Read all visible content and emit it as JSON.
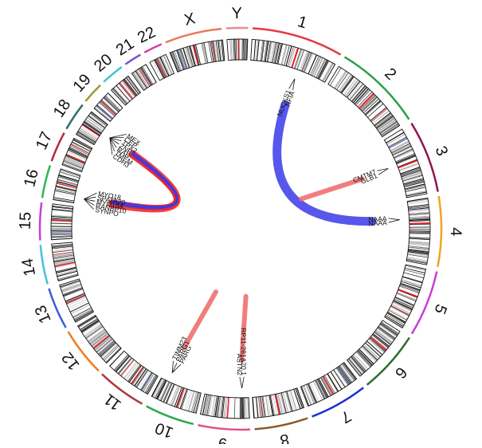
{
  "diagram": {
    "type": "circos",
    "chromosomes": [
      {
        "name": "1",
        "size": 249,
        "color": "#e8373f"
      },
      {
        "name": "2",
        "size": 243,
        "color": "#2f9e49"
      },
      {
        "name": "3",
        "size": 198,
        "color": "#8b1a4f"
      },
      {
        "name": "4",
        "size": 191,
        "color": "#f0a51c"
      },
      {
        "name": "5",
        "size": 181,
        "color": "#c63fd6"
      },
      {
        "name": "6",
        "size": 171,
        "color": "#2e6b2e"
      },
      {
        "name": "7",
        "size": 159,
        "color": "#1f2fd6"
      },
      {
        "name": "8",
        "size": 146,
        "color": "#8b5a2b"
      },
      {
        "name": "9",
        "size": 141,
        "color": "#e0508a"
      },
      {
        "name": "10",
        "size": 136,
        "color": "#2fa84f"
      },
      {
        "name": "11",
        "size": 135,
        "color": "#b03a3a"
      },
      {
        "name": "12",
        "size": 134,
        "color": "#f07a1c"
      },
      {
        "name": "13",
        "size": 115,
        "color": "#3a5fd6"
      },
      {
        "name": "14",
        "size": 107,
        "color": "#48c1d6"
      },
      {
        "name": "15",
        "size": 102,
        "color": "#c63fd6"
      },
      {
        "name": "16",
        "size": 90,
        "color": "#2fb84f"
      },
      {
        "name": "17",
        "size": 83,
        "color": "#b02a3a"
      },
      {
        "name": "18",
        "size": 78,
        "color": "#2f6b6b"
      },
      {
        "name": "19",
        "size": 59,
        "color": "#9b9b2b"
      },
      {
        "name": "20",
        "size": 63,
        "color": "#48c1d6"
      },
      {
        "name": "21",
        "size": 48,
        "color": "#7a4fd6"
      },
      {
        "name": "22",
        "size": 51,
        "color": "#d63f9b"
      },
      {
        "name": "X",
        "size": 155,
        "color": "#e87a5a"
      },
      {
        "name": "Y",
        "size": 59,
        "color": "#e88a9a"
      }
    ],
    "gene_groups": [
      {
        "chrom": "1",
        "pos": 0.62,
        "genes": [
          "NUCKS1",
          "NFIA"
        ]
      },
      {
        "chrom": "3",
        "pos": 0.45,
        "genes": [
          "CMTM7",
          "GLB1"
        ]
      },
      {
        "chrom": "4",
        "pos": 0.3,
        "genes": [
          "NAAA",
          "NAAA"
        ]
      },
      {
        "chrom": "9",
        "pos": 0.15,
        "genes": [
          "RP11-281A20.1",
          "ASTN2"
        ]
      },
      {
        "chrom": "10",
        "pos": 0.82,
        "genes": [
          "PARG",
          "PARG1",
          "TIMM23"
        ]
      },
      {
        "chrom": "16",
        "pos": 0.2,
        "genes": [
          "SYNPO",
          "RANBP10",
          "MYO18A",
          "SPATA20",
          "MYO18"
        ]
      },
      {
        "chrom": "18",
        "pos": 0.6,
        "genes": [
          "CDH3",
          "TMEM",
          "RAB",
          "ZNF",
          "TPX2",
          "CEP",
          "MEX"
        ]
      }
    ],
    "links": [
      {
        "from": "1",
        "from_pos": 0.62,
        "to": "4",
        "to_pos": 0.3,
        "color": "#3a3ae8",
        "width": 11
      },
      {
        "from": "3",
        "from_pos": 0.45,
        "to": "3",
        "to_pos": 0.45,
        "color": "#f07070",
        "width": 6,
        "type": "stub"
      },
      {
        "from": "9",
        "from_pos": 0.15,
        "to": "9",
        "to_pos": 0.15,
        "color": "#f07070",
        "width": 6,
        "type": "stub"
      },
      {
        "from": "10",
        "from_pos": 0.82,
        "to": "10",
        "to_pos": 0.82,
        "color": "#f07070",
        "width": 6,
        "type": "stub"
      },
      {
        "from": "16",
        "from_pos": 0.2,
        "to": "18",
        "to_pos": 0.6,
        "color": "#ee2222",
        "width": 9
      },
      {
        "from": "18",
        "from_pos": 0.5,
        "to": "16",
        "to_pos": 0.3,
        "color": "#ee2222",
        "width": 7
      },
      {
        "from": "16",
        "from_pos": 0.25,
        "to": "18",
        "to_pos": 0.65,
        "color": "#3a3ae8",
        "width": 3
      },
      {
        "from": "18",
        "from_pos": 0.55,
        "to": "16",
        "to_pos": 0.35,
        "color": "#3a3ae8",
        "width": 3
      }
    ]
  }
}
